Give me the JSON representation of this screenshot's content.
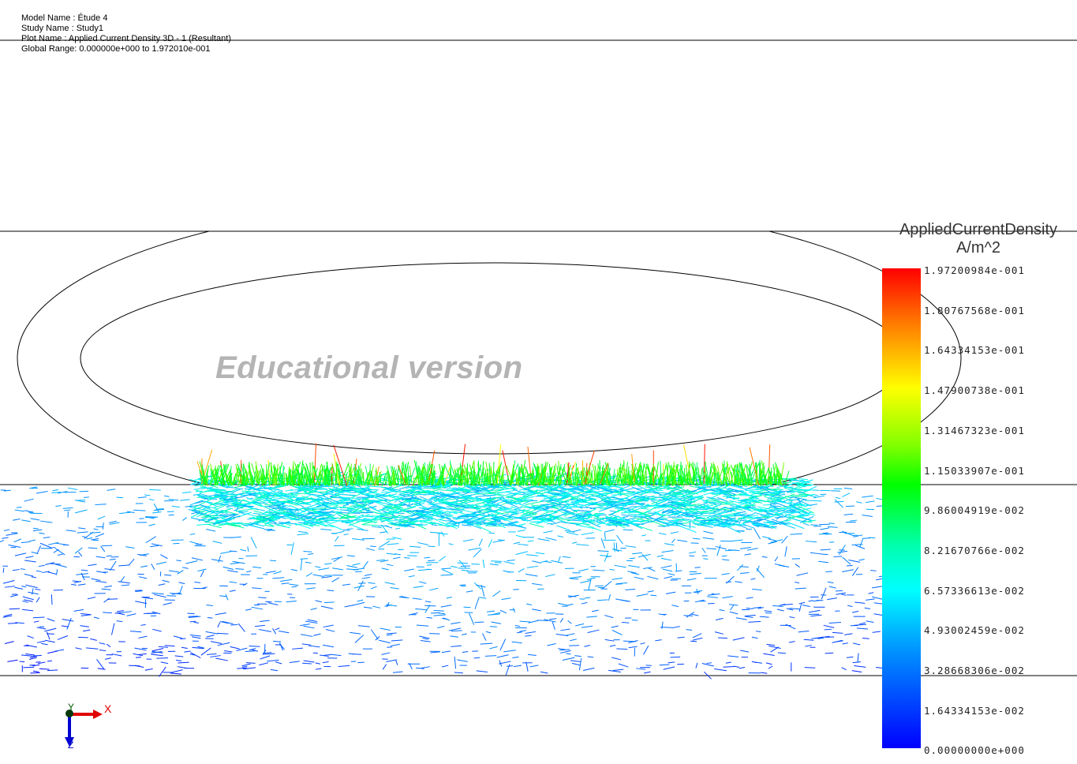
{
  "header": {
    "model_name": "Model Name : Étude 4",
    "study_name": "Study Name : Study1",
    "plot_name": "Plot Name : Applied Current Density 3D - 1 (Resultant)",
    "global_range": "Global Range: 0.000000e+000 to 1.972010e-001"
  },
  "watermark": "Educational version",
  "legend": {
    "title": "AppliedCurrentDensity",
    "unit": "A/m^2",
    "colormap": [
      "#ff0000",
      "#ff8000",
      "#ffff00",
      "#00ff00",
      "#00ffff",
      "#0000ff"
    ],
    "ticks": [
      "1.97200984e-001",
      "1.80767568e-001",
      "1.64334153e-001",
      "1.47900738e-001",
      "1.31467323e-001",
      "1.15033907e-001",
      "9.86004919e-002",
      "8.21670766e-002",
      "6.57336613e-002",
      "4.93002459e-002",
      "3.28668306e-002",
      "1.64334153e-002",
      "0.00000000e+000"
    ]
  },
  "triad": {
    "x_label": "X",
    "y_label": "Y",
    "z_label": "Z",
    "x_color": "#e00000",
    "y_color": "#006000",
    "z_color": "#0000d0"
  }
}
